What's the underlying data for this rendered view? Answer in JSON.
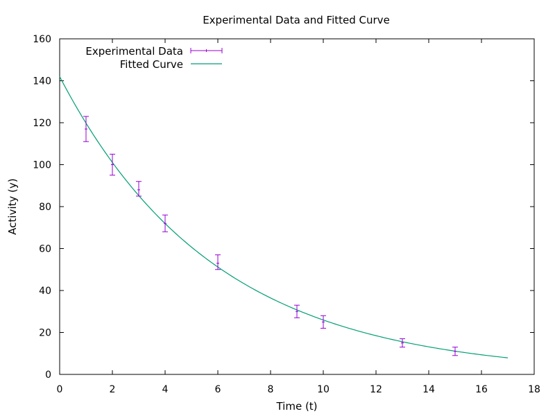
{
  "chart_data": {
    "type": "scatter",
    "title": "Experimental Data and Fitted Curve",
    "xlabel": "Time (t)",
    "ylabel": "Activity (y)",
    "xlim": [
      0,
      18
    ],
    "ylim": [
      0,
      160
    ],
    "x_ticks": [
      0,
      2,
      4,
      6,
      8,
      10,
      12,
      14,
      16,
      18
    ],
    "y_ticks": [
      0,
      20,
      40,
      60,
      80,
      100,
      120,
      140,
      160
    ],
    "grid": false,
    "legend_position": "top-left",
    "series": [
      {
        "name": "Experimental Data",
        "kind": "errorbar",
        "color": "#9400d3",
        "x": [
          1,
          2,
          3,
          4,
          6,
          9,
          10,
          13,
          15
        ],
        "y": [
          117,
          100,
          88,
          72,
          53,
          30,
          25,
          15,
          11
        ],
        "y_err_low": [
          6,
          5,
          3,
          4,
          3,
          3,
          3,
          2,
          2
        ],
        "y_err_high": [
          6,
          5,
          4,
          4,
          4,
          3,
          3,
          2,
          2
        ]
      },
      {
        "name": "Fitted Curve",
        "kind": "line",
        "color": "#009e73",
        "function": "exponential-decay",
        "amplitude": 142,
        "rate": 0.17,
        "x_range": [
          0,
          17
        ]
      }
    ]
  }
}
